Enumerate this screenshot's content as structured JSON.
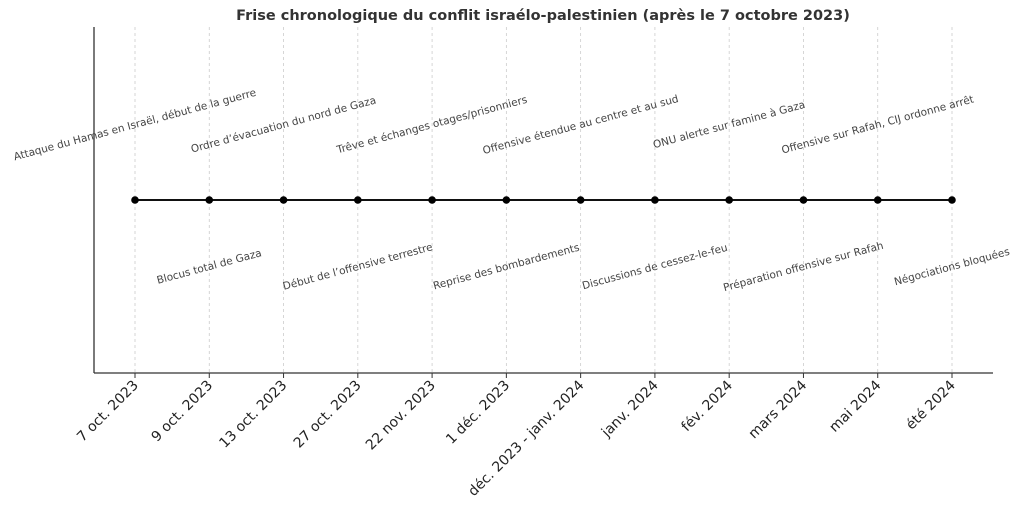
{
  "chart_data": {
    "type": "timeline",
    "title": "Frise chronologique du conflit israélo-palestinien (après le 7 octobre 2023)",
    "xlabel": "",
    "ylabel": "",
    "grid": {
      "x": true,
      "y": false,
      "style": "dashed",
      "color": "#cccccc"
    },
    "legend": null,
    "categories": [
      "7 oct. 2023",
      "9 oct. 2023",
      "13 oct. 2023",
      "27 oct. 2023",
      "22 nov. 2023",
      "1 déc. 2023",
      "déc. 2023 - janv. 2024",
      "janv. 2024",
      "fév. 2024",
      "mars 2024",
      "mai 2024",
      "été 2024"
    ],
    "events": [
      {
        "date": "7 oct. 2023",
        "label": "Attaque du Hamas en Israël, début de la guerre",
        "position": "above"
      },
      {
        "date": "9 oct. 2023",
        "label": "Blocus total de Gaza",
        "position": "below"
      },
      {
        "date": "13 oct. 2023",
        "label": "Ordre d’évacuation du nord de Gaza",
        "position": "above"
      },
      {
        "date": "27 oct. 2023",
        "label": "Début de l’offensive terrestre",
        "position": "below"
      },
      {
        "date": "22 nov. 2023",
        "label": "Trêve et échanges otages/prisonniers",
        "position": "above"
      },
      {
        "date": "1 déc. 2023",
        "label": "Reprise des bombardements",
        "position": "below"
      },
      {
        "date": "déc. 2023 - janv. 2024",
        "label": "Offensive étendue au centre et au sud",
        "position": "above"
      },
      {
        "date": "janv. 2024",
        "label": "Discussions de cessez-le-feu",
        "position": "below"
      },
      {
        "date": "fév. 2024",
        "label": "ONU alerte sur famine à Gaza",
        "position": "above"
      },
      {
        "date": "mars 2024",
        "label": "Préparation offensive sur Rafah",
        "position": "below"
      },
      {
        "date": "mai 2024",
        "label": "Offensive sur Rafah, CIJ ordonne arrêt",
        "position": "above"
      },
      {
        "date": "été 2024",
        "label": "Négociations bloquées",
        "position": "below"
      }
    ],
    "colors": {
      "line": "#000000",
      "marker": "#000000",
      "text": "#444444",
      "grid": "#cccccc"
    }
  }
}
